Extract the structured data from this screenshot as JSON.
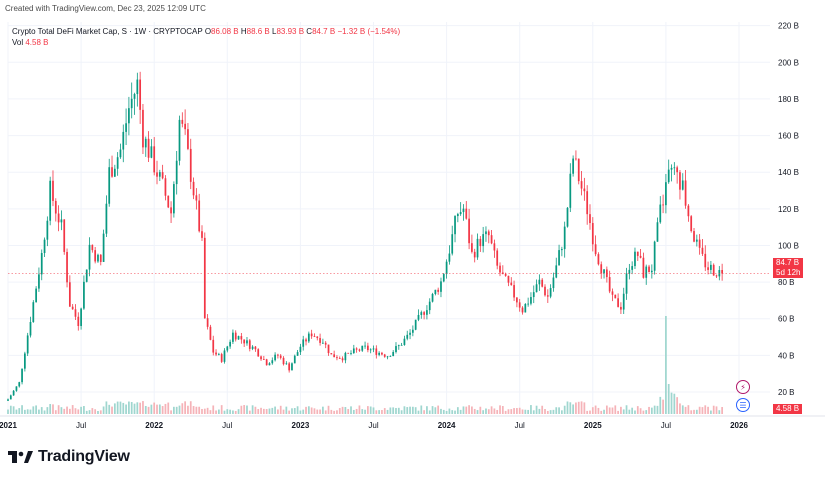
{
  "header": {
    "created": "Created with TradingView.com, Dec 23, 2025 12:09 UTC",
    "symbol": "Crypto Total DeFi Market Cap, S · 1W · CRYPTOCAP",
    "o_key": "O",
    "o_val": "86.08 B",
    "h_key": "H",
    "h_val": "88.6 B",
    "l_key": "L",
    "l_val": "83.93 B",
    "c_key": "C",
    "c_val": "84.7 B",
    "change": "−1.32 B (−1.54%)",
    "vol_label": "Vol",
    "vol_val": "4.58 B"
  },
  "badges": {
    "price": "84.7 B",
    "countdown": "5d 12h",
    "volume": "4.58 B"
  },
  "icons": {
    "lightning": "lightning-icon",
    "flag": "us-flag-icon"
  },
  "logo": {
    "text": "TradingView"
  },
  "colors": {
    "up": "#089981",
    "down": "#f23645",
    "up_vol": "#9fd6cf",
    "down_vol": "#f5b3b8"
  },
  "chart_data": {
    "type": "candlestick",
    "y_axis": {
      "ticks": [
        20,
        40,
        60,
        80,
        100,
        120,
        140,
        160,
        180,
        200,
        220
      ],
      "tick_labels": [
        "20 B",
        "40 B",
        "60 B",
        "80 B",
        "100 B",
        "120 B",
        "140 B",
        "160 B",
        "180 B",
        "200 B",
        "220 B"
      ],
      "range": [
        8,
        222
      ]
    },
    "x_axis": {
      "labels": [
        "2021",
        "Jul",
        "2022",
        "Jul",
        "2023",
        "Jul",
        "2024",
        "Jul",
        "2025",
        "Jul",
        "2026"
      ],
      "label_pos": [
        0,
        26,
        52,
        78,
        104,
        130,
        156,
        182,
        208,
        234,
        260
      ],
      "range": [
        0,
        260
      ]
    },
    "last_price": 84.7,
    "series": [
      {
        "name": "price",
        "points": [
          [
            0,
            16
          ],
          [
            4,
            25
          ],
          [
            8,
            60
          ],
          [
            12,
            95
          ],
          [
            15,
            130
          ],
          [
            19,
            110
          ],
          [
            22,
            68
          ],
          [
            25,
            58
          ],
          [
            29,
            100
          ],
          [
            33,
            90
          ],
          [
            36,
            140
          ],
          [
            40,
            152
          ],
          [
            43,
            175
          ],
          [
            46,
            188
          ],
          [
            48,
            160
          ],
          [
            51,
            148
          ],
          [
            55,
            132
          ],
          [
            58,
            118
          ],
          [
            61,
            168
          ],
          [
            63,
            158
          ],
          [
            66,
            130
          ],
          [
            69,
            100
          ],
          [
            70,
            60
          ],
          [
            73,
            42
          ],
          [
            76,
            38
          ],
          [
            80,
            52
          ],
          [
            84,
            48
          ],
          [
            88,
            43
          ],
          [
            92,
            36
          ],
          [
            96,
            40
          ],
          [
            100,
            33
          ],
          [
            104,
            45
          ],
          [
            108,
            52
          ],
          [
            112,
            48
          ],
          [
            115,
            40
          ],
          [
            119,
            39
          ],
          [
            123,
            42
          ],
          [
            127,
            44
          ],
          [
            131,
            42
          ],
          [
            135,
            40
          ],
          [
            139,
            45
          ],
          [
            143,
            52
          ],
          [
            147,
            62
          ],
          [
            151,
            72
          ],
          [
            154,
            80
          ],
          [
            157,
            98
          ],
          [
            160,
            118
          ],
          [
            162,
            120
          ],
          [
            165,
            95
          ],
          [
            168,
            103
          ],
          [
            171,
            105
          ],
          [
            174,
            88
          ],
          [
            177,
            80
          ],
          [
            180,
            73
          ],
          [
            183,
            65
          ],
          [
            186,
            72
          ],
          [
            189,
            80
          ],
          [
            192,
            72
          ],
          [
            195,
            88
          ],
          [
            198,
            108
          ],
          [
            201,
            148
          ],
          [
            203,
            137
          ],
          [
            206,
            120
          ],
          [
            209,
            98
          ],
          [
            212,
            84
          ],
          [
            215,
            70
          ],
          [
            218,
            67
          ],
          [
            221,
            90
          ],
          [
            224,
            95
          ],
          [
            226,
            85
          ],
          [
            229,
            88
          ],
          [
            232,
            118
          ],
          [
            235,
            138
          ],
          [
            238,
            140
          ],
          [
            240,
            133
          ],
          [
            243,
            110
          ],
          [
            246,
            95
          ],
          [
            249,
            88
          ],
          [
            252,
            86
          ],
          [
            254,
            84.7
          ]
        ]
      }
    ]
  }
}
